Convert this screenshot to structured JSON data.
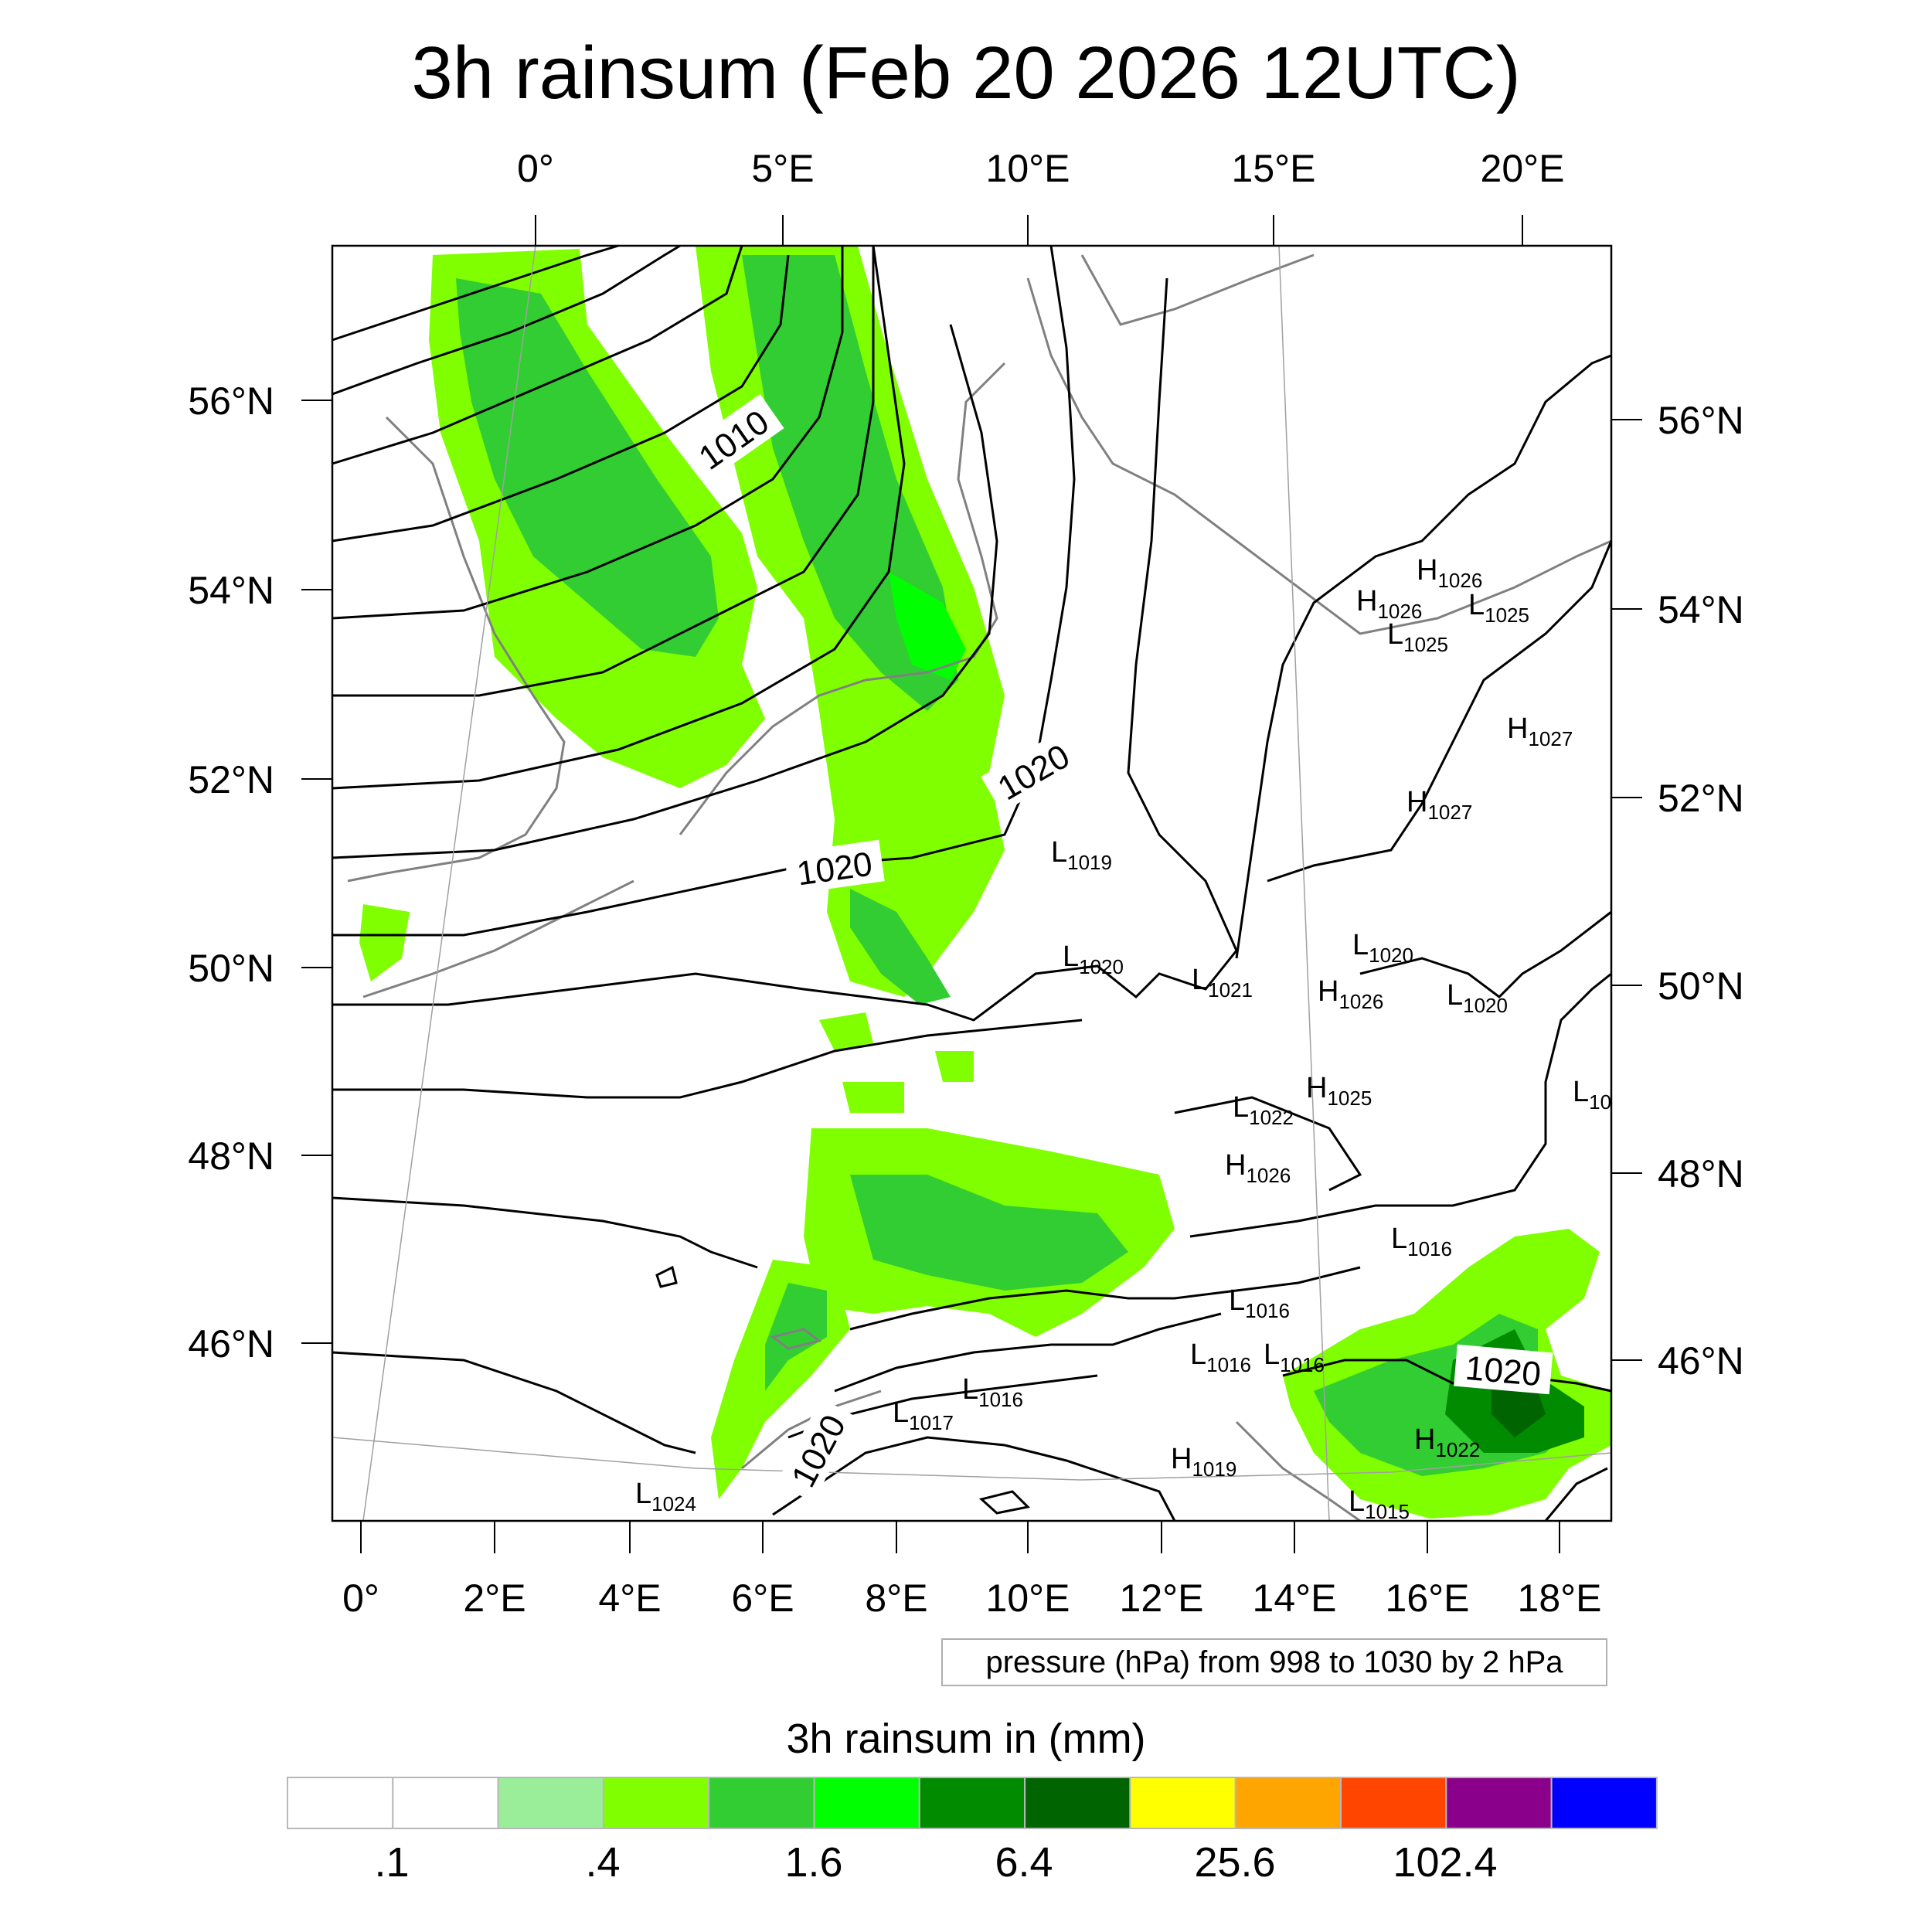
{
  "title": "3h rainsum (Feb 20 2026 12UTC)",
  "top_axis_labels": [
    "0°",
    "5°E",
    "10°E",
    "15°E",
    "20°E"
  ],
  "bottom_axis_labels": [
    "0°",
    "2°E",
    "4°E",
    "6°E",
    "8°E",
    "10°E",
    "12°E",
    "14°E",
    "16°E",
    "18°E"
  ],
  "left_axis_labels": [
    "56°N",
    "54°N",
    "52°N",
    "50°N",
    "48°N",
    "46°N"
  ],
  "right_axis_labels": [
    "56°N",
    "54°N",
    "52°N",
    "50°N",
    "48°N",
    "46°N"
  ],
  "contour_labels": [
    "1010",
    "1020",
    "1020",
    "1020",
    "1020"
  ],
  "pressure_centers": [
    {
      "type": "H",
      "value": "1026"
    },
    {
      "type": "H",
      "value": "1026"
    },
    {
      "type": "L",
      "value": "1025"
    },
    {
      "type": "L",
      "value": "1025"
    },
    {
      "type": "H",
      "value": "1027"
    },
    {
      "type": "H",
      "value": "1027"
    },
    {
      "type": "L",
      "value": "1019"
    },
    {
      "type": "L",
      "value": "1020"
    },
    {
      "type": "L",
      "value": "1020"
    },
    {
      "type": "L",
      "value": "1021"
    },
    {
      "type": "H",
      "value": "1026"
    },
    {
      "type": "L",
      "value": "1020"
    },
    {
      "type": "H",
      "value": "1025"
    },
    {
      "type": "L",
      "value": "10"
    },
    {
      "type": "L",
      "value": "1022"
    },
    {
      "type": "H",
      "value": "1026"
    },
    {
      "type": "L",
      "value": "1016"
    },
    {
      "type": "L",
      "value": "1016"
    },
    {
      "type": "L",
      "value": "1016"
    },
    {
      "type": "L",
      "value": "1016"
    },
    {
      "type": "L",
      "value": "1016"
    },
    {
      "type": "L",
      "value": "1017"
    },
    {
      "type": "H",
      "value": "1019"
    },
    {
      "type": "H",
      "value": "1022"
    },
    {
      "type": "L",
      "value": "1015"
    },
    {
      "type": "L",
      "value": "1024"
    }
  ],
  "legend_note": "pressure (hPa) from 998 to 1030 by 2 hPa",
  "colorbar": {
    "title": "3h rainsum in (mm)",
    "colors": [
      "#ffffff",
      "#ffffff",
      "#9aee9a",
      "#80ff00",
      "#32cd32",
      "#00ff00",
      "#008b00",
      "#006400",
      "#ffff00",
      "#ffa500",
      "#ff4500",
      "#8b008b",
      "#0000ff"
    ],
    "tick_labels": [
      ".1",
      ".4",
      "1.6",
      "6.4",
      "25.6",
      "102.4"
    ]
  }
}
